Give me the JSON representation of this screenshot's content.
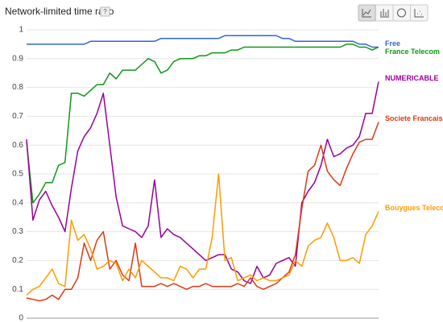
{
  "chart_data": {
    "type": "line",
    "title": "Network-limited time ratio",
    "help": "?",
    "categories": [
      null,
      null,
      null,
      null,
      null,
      null,
      null,
      null,
      null,
      null,
      null,
      null,
      null,
      null,
      null,
      null,
      null,
      null,
      null,
      null,
      null,
      null,
      null,
      null,
      null,
      null,
      null,
      null,
      null,
      null,
      null,
      null,
      null,
      null,
      null,
      null,
      null,
      null,
      null,
      null,
      null,
      null,
      null,
      null,
      null,
      null,
      null,
      null,
      null,
      null,
      null,
      null,
      null,
      null,
      null,
      null
    ],
    "ylim": [
      0,
      1
    ],
    "yticks": [
      0,
      0.1,
      0.2,
      0.3,
      0.4,
      0.5,
      0.6,
      0.7,
      0.8,
      0.9,
      1
    ],
    "grid": true,
    "series": [
      {
        "name": "Free",
        "color": "#3366cc",
        "values": [
          0.95,
          0.95,
          0.95,
          0.95,
          0.95,
          0.95,
          0.95,
          0.95,
          0.95,
          0.95,
          0.96,
          0.96,
          0.96,
          0.96,
          0.96,
          0.96,
          0.96,
          0.96,
          0.96,
          0.96,
          0.96,
          0.97,
          0.97,
          0.97,
          0.97,
          0.97,
          0.97,
          0.97,
          0.97,
          0.97,
          0.97,
          0.98,
          0.98,
          0.98,
          0.98,
          0.98,
          0.98,
          0.98,
          0.98,
          0.98,
          0.97,
          0.97,
          0.96,
          0.96,
          0.96,
          0.96,
          0.96,
          0.96,
          0.96,
          0.96,
          0.96,
          0.96,
          0.95,
          0.95,
          0.94,
          0.94
        ]
      },
      {
        "name": "France Telecom",
        "color": "#109618",
        "values": [
          0.61,
          0.4,
          0.43,
          0.47,
          0.47,
          0.53,
          0.54,
          0.78,
          0.78,
          0.77,
          0.79,
          0.81,
          0.81,
          0.85,
          0.83,
          0.86,
          0.86,
          0.86,
          0.88,
          0.9,
          0.89,
          0.85,
          0.86,
          0.89,
          0.9,
          0.9,
          0.9,
          0.91,
          0.91,
          0.92,
          0.92,
          0.92,
          0.93,
          0.93,
          0.94,
          0.94,
          0.94,
          0.94,
          0.94,
          0.94,
          0.94,
          0.94,
          0.94,
          0.94,
          0.94,
          0.94,
          0.94,
          0.94,
          0.94,
          0.94,
          0.95,
          0.95,
          0.94,
          0.94,
          0.93,
          0.94
        ]
      },
      {
        "name": "NUMERICABLE",
        "color": "#990099",
        "values": [
          0.62,
          0.34,
          0.41,
          0.44,
          0.39,
          0.35,
          0.3,
          0.45,
          0.58,
          0.63,
          0.66,
          0.71,
          0.78,
          0.6,
          0.42,
          0.32,
          0.31,
          0.3,
          0.28,
          0.32,
          0.48,
          0.28,
          0.31,
          0.29,
          0.28,
          0.26,
          0.24,
          0.22,
          0.2,
          0.21,
          0.22,
          0.22,
          0.17,
          0.16,
          0.13,
          0.12,
          0.18,
          0.14,
          0.15,
          0.19,
          0.2,
          0.21,
          0.18,
          0.4,
          0.44,
          0.47,
          0.53,
          0.62,
          0.56,
          0.57,
          0.59,
          0.6,
          0.63,
          0.71,
          0.71,
          0.82
        ]
      },
      {
        "name": "Societe Francaise d",
        "color": "#dc3912",
        "values": [
          0.07,
          0.065,
          0.06,
          0.065,
          0.08,
          0.065,
          0.1,
          0.1,
          0.14,
          0.26,
          0.2,
          0.27,
          0.3,
          0.17,
          0.2,
          0.15,
          0.13,
          0.26,
          0.11,
          0.11,
          0.11,
          0.12,
          0.11,
          0.12,
          0.11,
          0.1,
          0.11,
          0.11,
          0.12,
          0.11,
          0.11,
          0.11,
          0.11,
          0.12,
          0.11,
          0.14,
          0.11,
          0.1,
          0.11,
          0.12,
          0.14,
          0.16,
          0.22,
          0.38,
          0.51,
          0.53,
          0.6,
          0.51,
          0.48,
          0.46,
          0.52,
          0.57,
          0.61,
          0.62,
          0.62,
          0.68
        ]
      },
      {
        "name": "Bouygues Telecom",
        "color": "#ff9900",
        "values": [
          0.08,
          0.1,
          0.11,
          0.14,
          0.17,
          0.12,
          0.11,
          0.34,
          0.27,
          0.29,
          0.24,
          0.17,
          0.18,
          0.2,
          0.19,
          0.13,
          0.17,
          0.14,
          0.2,
          0.18,
          0.16,
          0.14,
          0.14,
          0.13,
          0.18,
          0.17,
          0.14,
          0.17,
          0.17,
          0.28,
          0.5,
          0.2,
          0.21,
          0.13,
          0.14,
          0.15,
          0.13,
          0.14,
          0.13,
          0.13,
          0.14,
          0.15,
          0.2,
          0.18,
          0.25,
          0.27,
          0.28,
          0.33,
          0.28,
          0.2,
          0.2,
          0.21,
          0.19,
          0.29,
          0.32,
          0.37
        ]
      }
    ]
  }
}
